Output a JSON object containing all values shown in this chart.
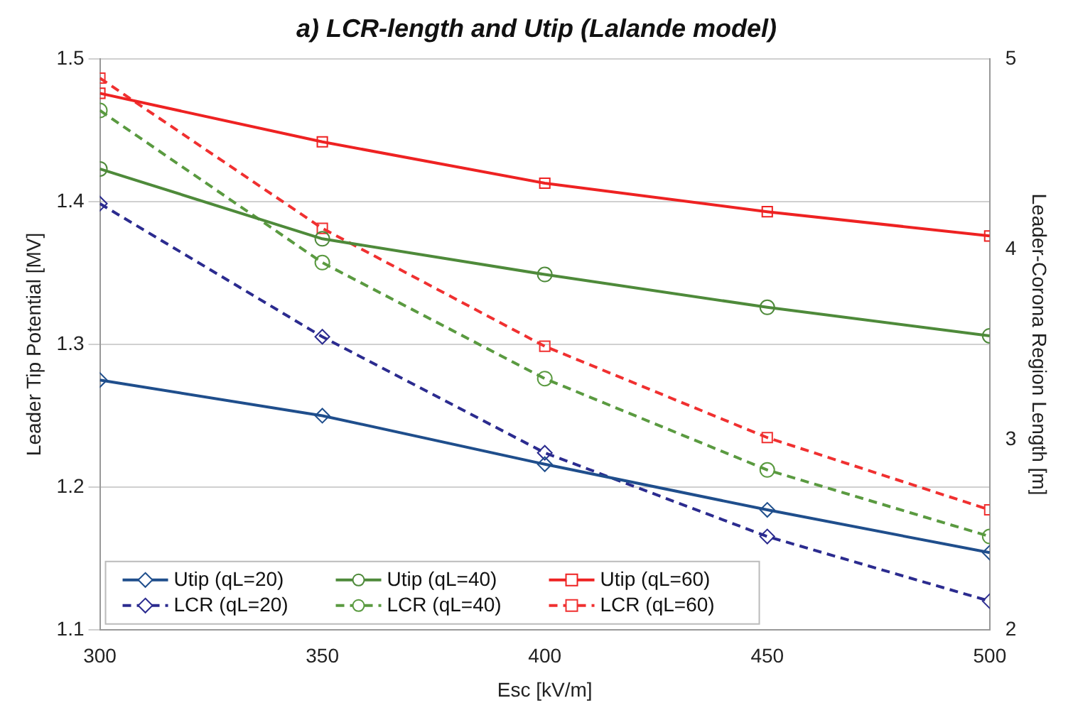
{
  "chart_data": {
    "type": "line",
    "title": "a) LCR-length and Utip (Lalande model)",
    "xlabel": "Esc [kV/m]",
    "ylabel": "Leader Tip Potential [MV]",
    "y2label": "Leader-Corona Region Length [m]",
    "x": [
      300,
      350,
      400,
      450,
      500
    ],
    "xlim": [
      300,
      500
    ],
    "xticks": [
      300,
      350,
      400,
      450,
      500
    ],
    "ylim": [
      1.1,
      1.5
    ],
    "yticks": [
      1.1,
      1.2,
      1.3,
      1.4,
      1.5
    ],
    "y2lim": [
      2,
      5
    ],
    "y2ticks": [
      2,
      3,
      4,
      5
    ],
    "grid": "y",
    "legend": "bottom left",
    "series": [
      {
        "name": "Utip (qL=20)",
        "color": "#1f4e8c",
        "marker": "diamond",
        "line_style": "solid",
        "values": [
          1.275,
          1.25,
          1.216,
          1.184,
          1.154
        ]
      },
      {
        "name": "LCR (qL=20)",
        "color": "#2b2b8f",
        "marker": "diamond",
        "line_style": "dashed",
        "axis": "y2",
        "values": [
          4.24,
          3.54,
          2.93,
          2.49,
          2.15
        ]
      },
      {
        "name": "Utip (qL=40)",
        "color": "#4e8a3a",
        "marker": "circle",
        "line_style": "solid",
        "values": [
          1.423,
          1.374,
          1.349,
          1.326,
          1.306
        ]
      },
      {
        "name": "LCR (qL=40)",
        "color": "#5a9a40",
        "marker": "circle",
        "line_style": "dashed",
        "axis": "y2",
        "values": [
          4.73,
          3.93,
          3.32,
          2.84,
          2.49
        ]
      },
      {
        "name": "Utip (qL=60)",
        "color": "#ee2222",
        "marker": "square",
        "line_style": "solid",
        "values": [
          1.476,
          1.442,
          1.413,
          1.393,
          1.376
        ]
      },
      {
        "name": "LCR (qL=60)",
        "color": "#f03030",
        "marker": "square",
        "line_style": "dashed",
        "axis": "y2",
        "values": [
          4.9,
          4.11,
          3.49,
          3.01,
          2.63
        ]
      }
    ]
  }
}
